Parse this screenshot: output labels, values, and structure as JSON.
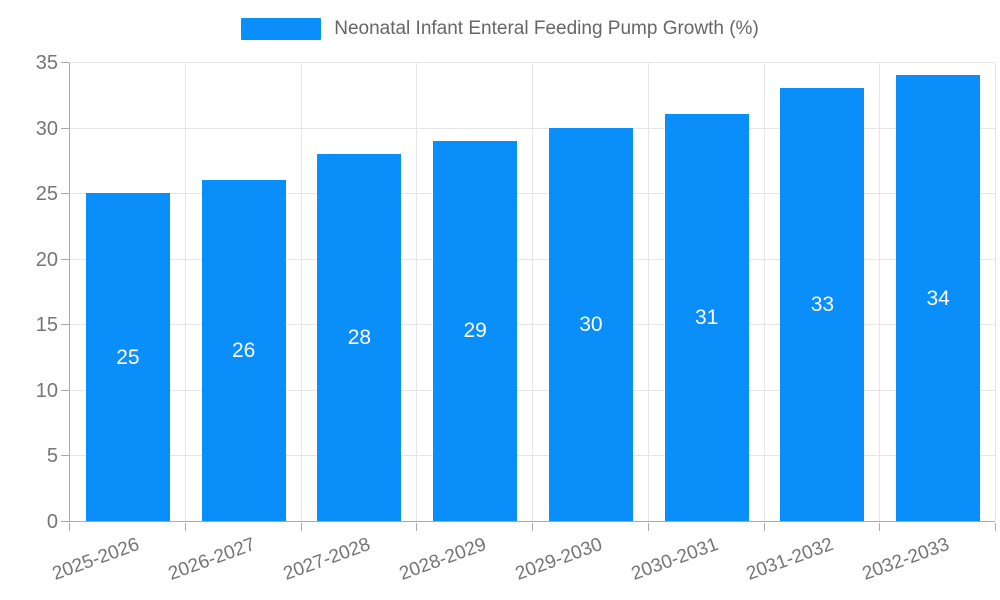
{
  "legend": {
    "label": "Neonatal Infant Enteral Feeding Pump Growth (%)"
  },
  "chart_data": {
    "type": "bar",
    "title": "Neonatal Infant Enteral Feeding Pump Growth (%)",
    "categories": [
      "2025-2026",
      "2026-2027",
      "2027-2028",
      "2028-2029",
      "2029-2030",
      "2030-2031",
      "2031-2032",
      "2032-2033"
    ],
    "series": [
      {
        "name": "Neonatal Infant Enteral Feeding Pump Growth (%)",
        "values": [
          25,
          26,
          28,
          29,
          30,
          31,
          33,
          34
        ]
      }
    ],
    "values": [
      25,
      26,
      28,
      29,
      30,
      31,
      33,
      34
    ],
    "bar_value_labels": [
      "25",
      "26",
      "28",
      "29",
      "30",
      "31",
      "33",
      "34"
    ],
    "xlabel": "",
    "ylabel": "",
    "ylim": [
      0,
      35
    ],
    "yticks": [
      0,
      5,
      10,
      15,
      20,
      25,
      30,
      35
    ],
    "grid": true,
    "legend_position": "top-center",
    "bar_labels_inside": true
  },
  "colors": {
    "bar": "#0A8EFA",
    "bar_label": "#FFFFFF",
    "grid": "#E6E6E6",
    "axis": "#AAAAAA",
    "tick_text": "#757575",
    "legend_text": "#666666",
    "background": "#FFFFFF"
  }
}
